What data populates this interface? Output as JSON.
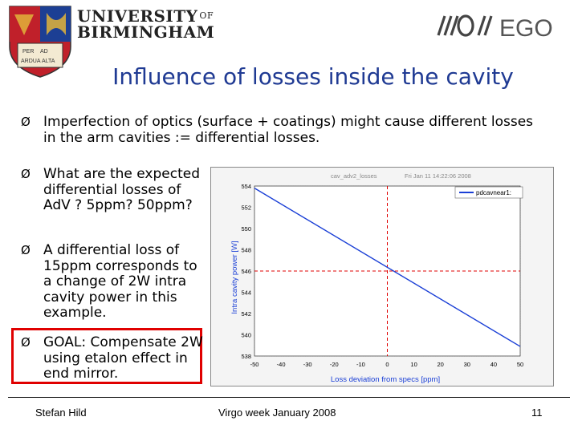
{
  "header": {
    "university_line1": "UNIVERSITY",
    "university_of": "OF",
    "university_line2": "BIRMINGHAM",
    "logo_ego_text": "EGO",
    "crest_motto": [
      "PER",
      "ARDUA",
      "AD",
      "ALTA"
    ]
  },
  "title": "Influence of losses inside the cavity",
  "bullets": [
    {
      "text": "Imperfection of optics (surface + coatings) might cause different losses in the arm cavities := differential losses."
    },
    {
      "text": "What are the expected differential losses of AdV ? 5ppm? 50ppm?"
    },
    {
      "text": "A differential loss of 15ppm corresponds to a change of 2W intra cavity power in this example."
    },
    {
      "text": "GOAL: Compensate 2W using etalon effect in end mirror."
    }
  ],
  "bullet_marker": "Ø",
  "chart_data": {
    "type": "line",
    "title": "cav_adv2_losses",
    "timestamp": "Fri Jan 11 14:22:06 2008",
    "xlabel": "Loss deviation from specs [ppm]",
    "ylabel": "Intra cavity power [W]",
    "xlim": [
      -50,
      50
    ],
    "ylim": [
      538,
      554
    ],
    "xticks": [
      -50,
      -40,
      -30,
      -20,
      -10,
      0,
      10,
      20,
      30,
      40,
      50
    ],
    "yticks": [
      538,
      540,
      542,
      544,
      546,
      548,
      550,
      552,
      554
    ],
    "grid": true,
    "legend_position": "top-right",
    "series": [
      {
        "name": "pdcavnear1:",
        "color": "#1a3fd6",
        "x": [
          -50,
          50
        ],
        "y": [
          553.8,
          538.9
        ]
      }
    ],
    "reference_lines": {
      "x": 0,
      "y": 546,
      "color": "#e00000",
      "style": "dashed"
    }
  },
  "footer": {
    "author": "Stefan Hild",
    "event": "Virgo week January 2008",
    "page": "11"
  },
  "colors": {
    "title": "#1f3a93",
    "goal_box": "#e00000",
    "crest_red": "#c0202a",
    "crest_blue": "#1c3f94",
    "crest_gold": "#e2b43a"
  }
}
